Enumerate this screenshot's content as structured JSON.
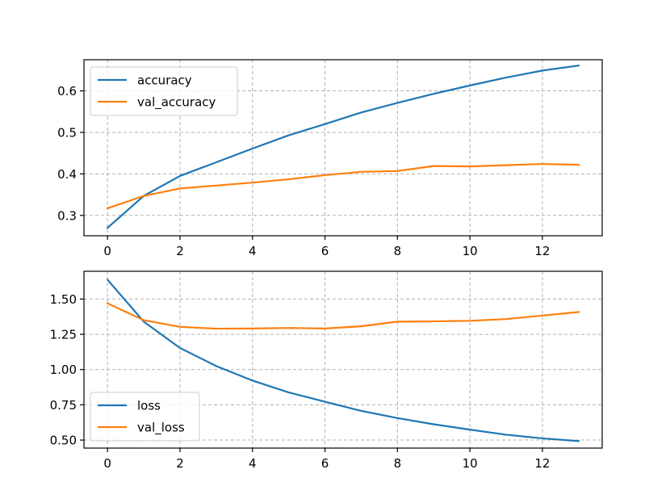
{
  "chart_data": [
    {
      "type": "line",
      "title": "",
      "xlabel": "",
      "ylabel": "",
      "xlim": [
        -0.65,
        13.65
      ],
      "ylim": [
        0.251,
        0.675
      ],
      "xticks": [
        0,
        2,
        4,
        6,
        8,
        10,
        12
      ],
      "xtick_labels": [
        "0",
        "2",
        "4",
        "6",
        "8",
        "10",
        "12"
      ],
      "yticks": [
        0.3,
        0.4,
        0.5,
        0.6
      ],
      "ytick_labels": [
        "0.3",
        "0.4",
        "0.5",
        "0.6"
      ],
      "grid": true,
      "legend_position": "top-left",
      "x": [
        0,
        1,
        2,
        3,
        4,
        5,
        6,
        7,
        8,
        9,
        10,
        11,
        12,
        13
      ],
      "series": [
        {
          "name": "accuracy",
          "color": "#1f77b4",
          "values": [
            0.27,
            0.347,
            0.395,
            0.428,
            0.461,
            0.493,
            0.52,
            0.548,
            0.571,
            0.593,
            0.613,
            0.632,
            0.649,
            0.661
          ]
        },
        {
          "name": "val_accuracy",
          "color": "#ff7f0e",
          "values": [
            0.317,
            0.347,
            0.365,
            0.372,
            0.379,
            0.387,
            0.397,
            0.405,
            0.407,
            0.419,
            0.418,
            0.421,
            0.424,
            0.422
          ]
        }
      ]
    },
    {
      "type": "line",
      "title": "",
      "xlabel": "",
      "ylabel": "",
      "xlim": [
        -0.65,
        13.65
      ],
      "ylim": [
        0.443,
        1.697
      ],
      "xticks": [
        0,
        2,
        4,
        6,
        8,
        10,
        12
      ],
      "xtick_labels": [
        "0",
        "2",
        "4",
        "6",
        "8",
        "10",
        "12"
      ],
      "yticks": [
        0.5,
        0.75,
        1.0,
        1.25,
        1.5
      ],
      "ytick_labels": [
        "0.50",
        "0.75",
        "1.00",
        "1.25",
        "1.50"
      ],
      "grid": true,
      "legend_position": "bottom-left",
      "x": [
        0,
        1,
        2,
        3,
        4,
        5,
        6,
        7,
        8,
        9,
        10,
        11,
        12,
        13
      ],
      "series": [
        {
          "name": "loss",
          "color": "#1f77b4",
          "values": [
            1.637,
            1.34,
            1.153,
            1.025,
            0.922,
            0.838,
            0.772,
            0.707,
            0.656,
            0.612,
            0.574,
            0.538,
            0.512,
            0.493
          ]
        },
        {
          "name": "val_loss",
          "color": "#ff7f0e",
          "values": [
            1.47,
            1.35,
            1.303,
            1.29,
            1.291,
            1.295,
            1.291,
            1.307,
            1.34,
            1.342,
            1.346,
            1.358,
            1.383,
            1.408
          ]
        }
      ]
    }
  ]
}
